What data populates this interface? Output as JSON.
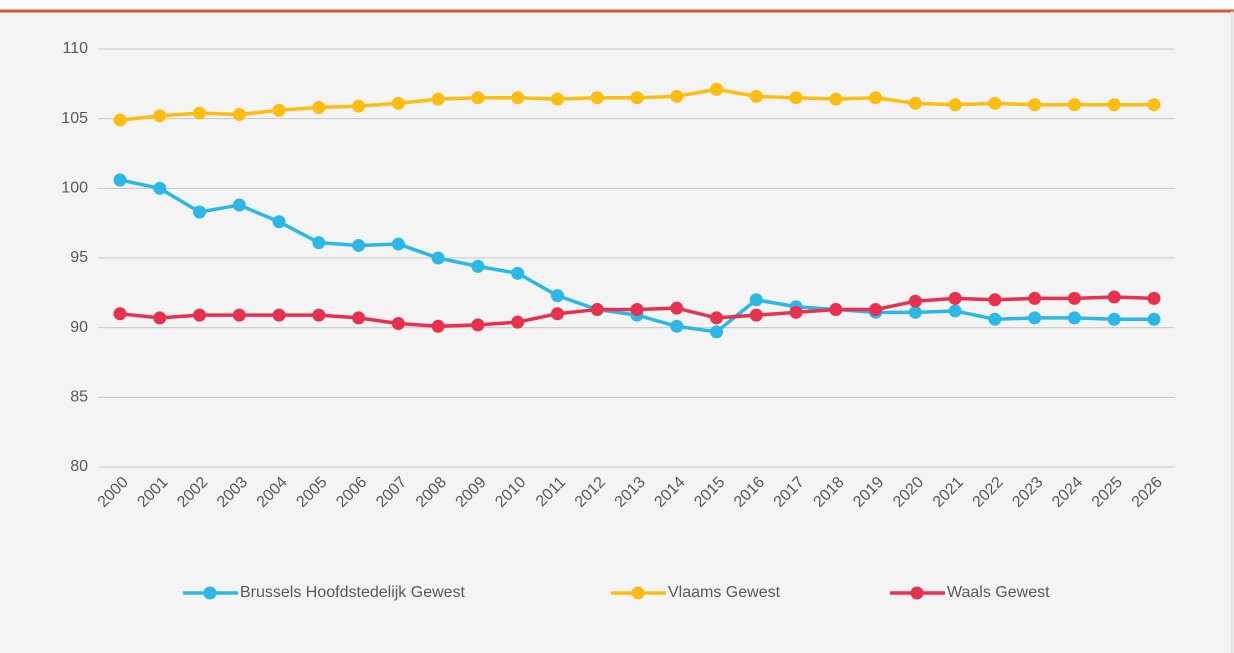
{
  "chart_data": {
    "type": "line",
    "categories": [
      "2000",
      "2001",
      "2002",
      "2003",
      "2004",
      "2005",
      "2006",
      "2007",
      "2008",
      "2009",
      "2010",
      "2011",
      "2012",
      "2013",
      "2014",
      "2015",
      "2016",
      "2017",
      "2018",
      "2019",
      "2020",
      "2021",
      "2022",
      "2023",
      "2024",
      "2025",
      "2026"
    ],
    "series": [
      {
        "name": "Brussels Hoofdstedelijk Gewest",
        "color": "#2bb8e6",
        "values": [
          100.6,
          100.0,
          98.3,
          98.8,
          97.6,
          96.1,
          95.9,
          96.0,
          95.0,
          94.4,
          93.9,
          92.3,
          91.3,
          90.9,
          90.1,
          89.7,
          92.0,
          91.5,
          91.3,
          91.1,
          91.1,
          91.2,
          90.6,
          90.7,
          90.7,
          90.6,
          90.6
        ]
      },
      {
        "name": "Vlaams Gewest",
        "color": "#fdbd10",
        "values": [
          104.9,
          105.2,
          105.4,
          105.3,
          105.6,
          105.8,
          105.9,
          106.1,
          106.4,
          106.5,
          106.5,
          106.4,
          106.5,
          106.5,
          106.6,
          107.1,
          106.6,
          106.5,
          106.4,
          106.5,
          106.1,
          106.0,
          106.1,
          106.0,
          106.0,
          106.0,
          106.0
        ]
      },
      {
        "name": "Waals Gewest",
        "color": "#e8304f",
        "values": [
          91.0,
          90.7,
          90.9,
          90.9,
          90.9,
          90.9,
          90.7,
          90.3,
          90.1,
          90.2,
          90.4,
          91.0,
          91.3,
          91.3,
          91.4,
          90.7,
          90.9,
          91.1,
          91.3,
          91.3,
          91.9,
          92.1,
          92.0,
          92.1,
          92.1,
          92.2,
          92.1
        ]
      }
    ],
    "ylim": [
      80,
      110
    ],
    "yticks": [
      80,
      85,
      90,
      95,
      100,
      105,
      110
    ],
    "grid": true,
    "legend": "bottom"
  }
}
